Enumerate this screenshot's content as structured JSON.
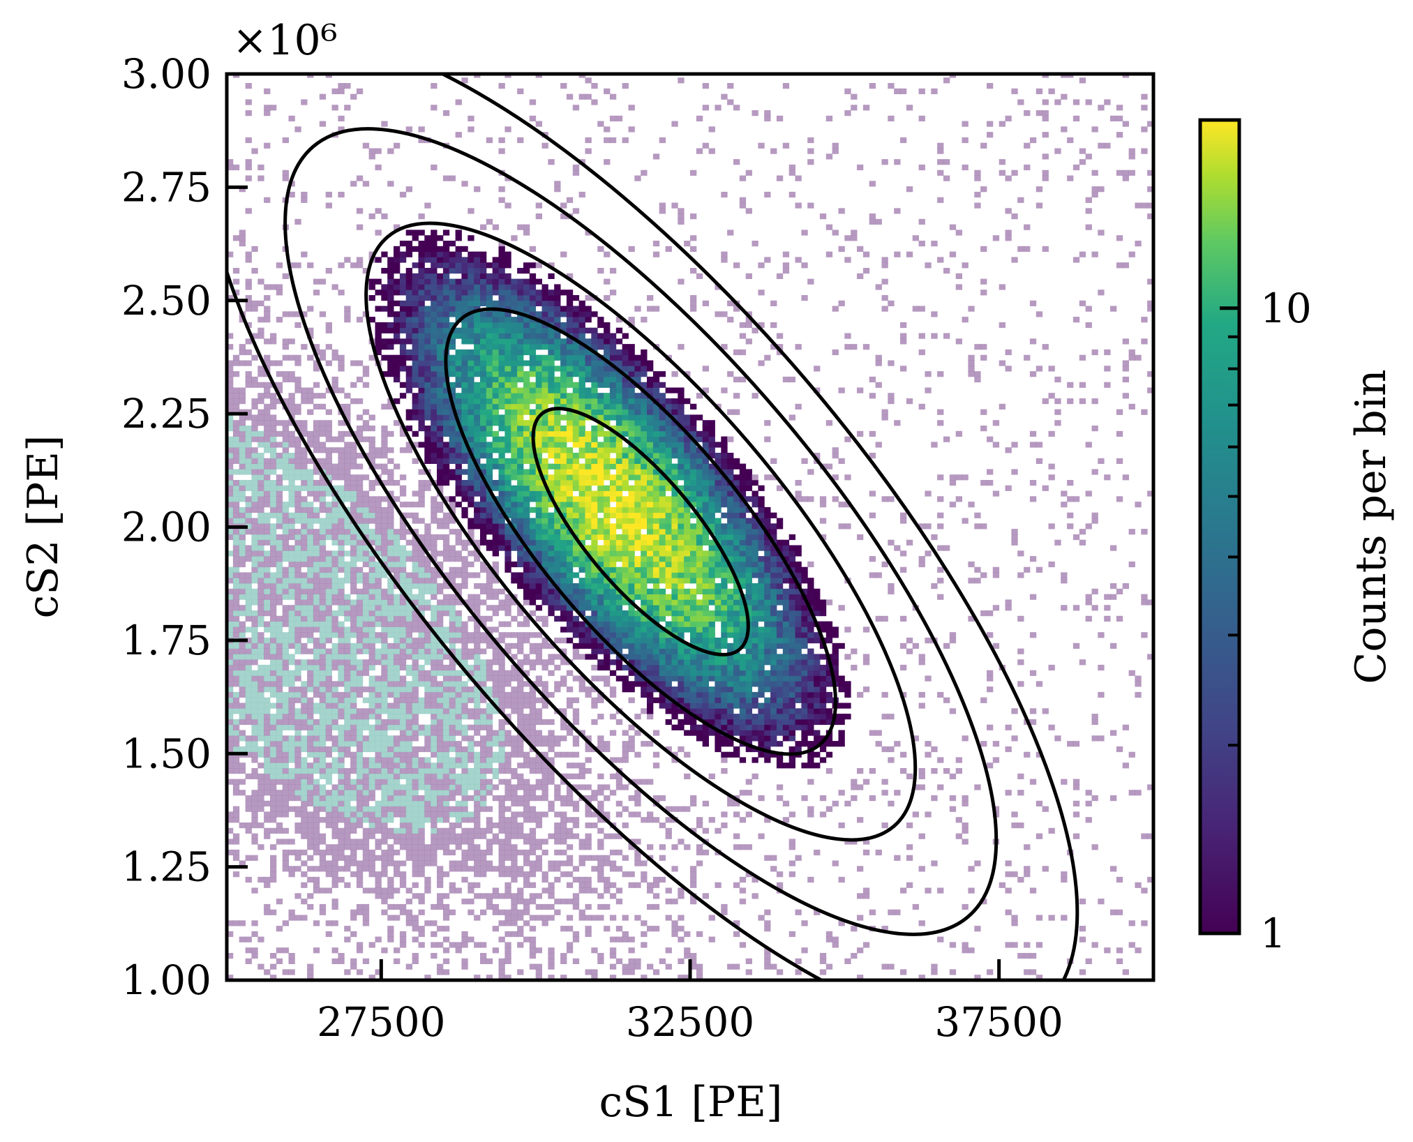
{
  "chart_data": {
    "type": "heatmap",
    "xlabel": "cS1  [PE]",
    "ylabel": "cS2 [PE]",
    "xlim": [
      25000,
      40000
    ],
    "ylim": [
      1000000,
      3000000
    ],
    "x_ticks": [
      27500,
      32500,
      37500
    ],
    "x_tick_labels": [
      "27500",
      "32500",
      "37500"
    ],
    "y_ticks": [
      1000000,
      1250000,
      1500000,
      1750000,
      2000000,
      2250000,
      2500000,
      2750000,
      3000000
    ],
    "y_tick_labels": [
      "1.00",
      "1.25",
      "1.50",
      "1.75",
      "2.00",
      "2.25",
      "2.50",
      "2.75",
      "3.00"
    ],
    "y_offset_label": "×10⁶",
    "colorbar": {
      "label": "Counts per bin",
      "scale": "log",
      "range": [
        1,
        20
      ],
      "tick_values": [
        1,
        10
      ],
      "tick_labels": [
        "1",
        "10"
      ],
      "colormap": "viridis"
    },
    "grid": false,
    "main_population": {
      "center": [
        31200,
        2060000
      ],
      "peak_counts_per_bin": 18,
      "colormap": "viridis"
    },
    "background_population": {
      "center": [
        26000,
        1800000
      ],
      "description_colormap": "faded purple/teal overlay"
    },
    "contours": [
      {
        "center": [
          31700,
          1990000
        ],
        "semi_major": [
          1600,
          -260000
        ],
        "semi_minor_scale": 0.36
      },
      {
        "center": [
          31700,
          1990000
        ],
        "semi_major": [
          2900,
          -470000
        ],
        "semi_minor_scale": 0.36
      },
      {
        "center": [
          31700,
          1990000
        ],
        "semi_major": [
          4100,
          -650000
        ],
        "semi_minor_scale": 0.36
      },
      {
        "center": [
          31700,
          1990000
        ],
        "semi_major": [
          5300,
          -850000
        ],
        "semi_minor_scale": 0.36
      },
      {
        "center": [
          31700,
          1990000
        ],
        "semi_major": [
          6500,
          -1050000
        ],
        "semi_minor_scale": 0.36
      }
    ],
    "colors": {
      "contour": "#000000",
      "background_purple": "#a47fb0",
      "background_teal": "#8fc9c0"
    }
  }
}
